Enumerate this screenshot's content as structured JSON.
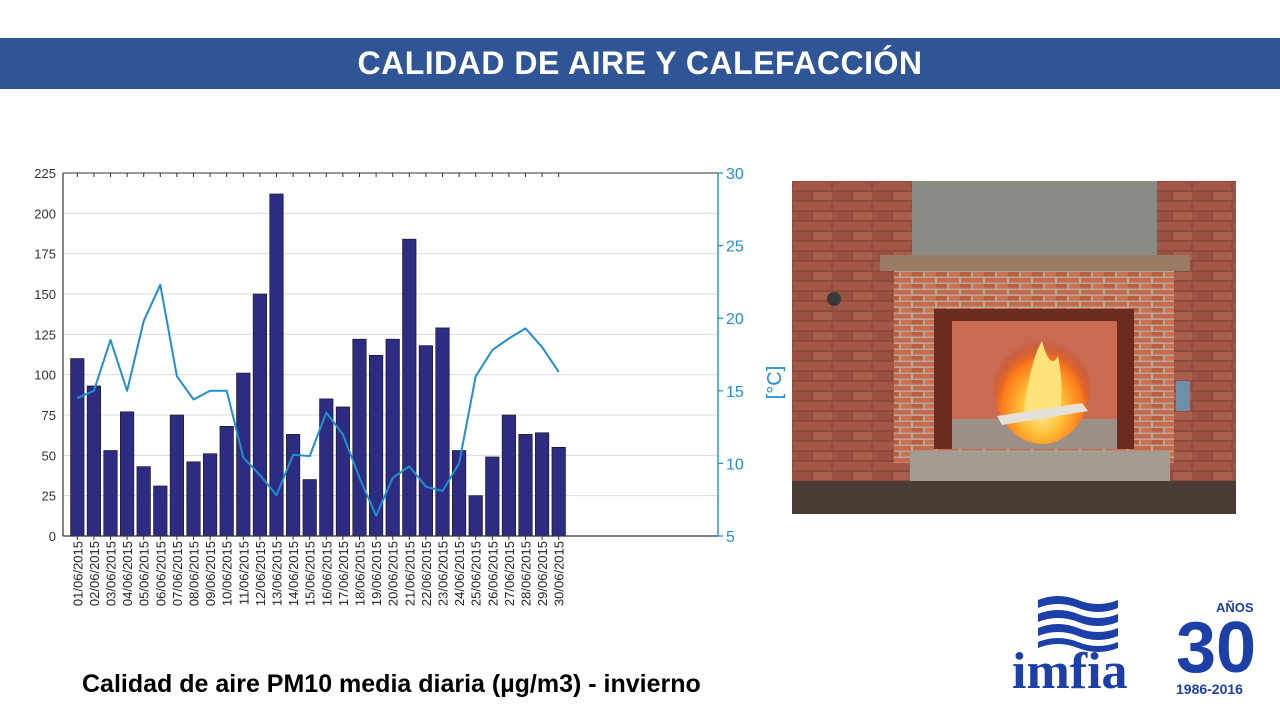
{
  "header": {
    "title": "CALIDAD DE AIRE Y CALEFACCIÓN"
  },
  "caption": "Calidad de aire PM10 media diaria (µg/m3) - invierno",
  "colors": {
    "header_bg": "#2f5597",
    "bar": "#2e2b82",
    "line": "#1f8fd0"
  },
  "photo": {
    "subject": "fireplace-icon"
  },
  "logo": {
    "name": "imfia",
    "anos_label": "AÑOS",
    "anniversary_number": "30",
    "years": "1986-2016"
  },
  "chart_data": {
    "type": "bar",
    "categories": [
      "01/06/2015",
      "02/06/2015",
      "03/06/2015",
      "04/06/2015",
      "05/06/2015",
      "06/06/2015",
      "07/06/2015",
      "08/06/2015",
      "09/06/2015",
      "10/06/2015",
      "11/06/2015",
      "12/06/2015",
      "13/06/2015",
      "14/06/2015",
      "15/06/2015",
      "16/06/2015",
      "17/06/2015",
      "18/06/2015",
      "19/06/2015",
      "20/06/2015",
      "21/06/2015",
      "22/06/2015",
      "23/06/2015",
      "24/06/2015",
      "25/06/2015",
      "26/06/2015",
      "27/06/2015",
      "28/06/2015",
      "29/06/2015",
      "30/06/2015"
    ],
    "series": [
      {
        "type": "bar",
        "axis": "left",
        "values": [
          110,
          93,
          53,
          77,
          43,
          31,
          75,
          46,
          51,
          68,
          101,
          150,
          212,
          63,
          35,
          85,
          80,
          122,
          112,
          122,
          184,
          118,
          129,
          53,
          25,
          49,
          75,
          63,
          64,
          55
        ]
      },
      {
        "type": "line",
        "axis": "right",
        "values": [
          14.5,
          15.0,
          18.5,
          15.0,
          19.8,
          22.3,
          16.0,
          14.4,
          15.0,
          15.0,
          10.4,
          9.2,
          7.8,
          10.6,
          10.5,
          13.5,
          12.0,
          9.0,
          6.4,
          9.0,
          9.8,
          8.4,
          8.1,
          10.0,
          16.0,
          17.8,
          18.6,
          19.3,
          18.0,
          16.3
        ]
      }
    ],
    "ylim": [
      0,
      225
    ],
    "yticks": [
      0,
      25,
      50,
      75,
      100,
      125,
      150,
      175,
      200,
      225
    ],
    "y2lim": [
      5,
      30
    ],
    "y2ticks": [
      5,
      10,
      15,
      20,
      25,
      30
    ],
    "y2label": "[°C]",
    "grid": true
  }
}
